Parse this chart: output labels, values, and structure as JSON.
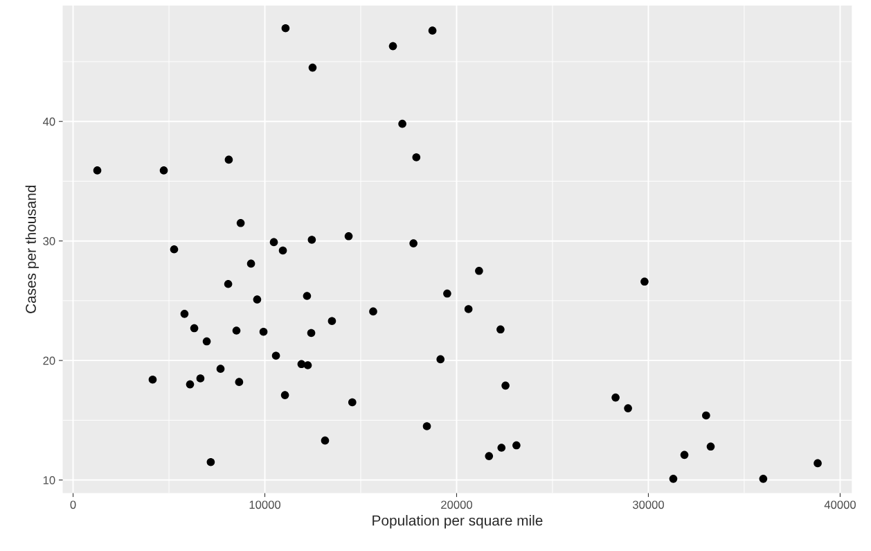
{
  "chart_data": {
    "type": "scatter",
    "xlabel": "Population per square mile",
    "ylabel": "Cases per thousand",
    "x": [
      1264,
      4150,
      4730,
      5270,
      5810,
      6100,
      6320,
      6640,
      6970,
      7180,
      7690,
      8120,
      8090,
      8520,
      8660,
      8740,
      9280,
      9600,
      9930,
      10470,
      10580,
      10940,
      11050,
      11080,
      11910,
      12240,
      12200,
      12420,
      12450,
      12490,
      13140,
      13500,
      14370,
      14560,
      15650,
      16680,
      17170,
      17750,
      17900,
      18450,
      18740,
      19160,
      19510,
      20620,
      21170,
      21690,
      22290,
      22340,
      22550,
      23120,
      28290,
      28940,
      29800,
      31300,
      31880,
      33010,
      33250,
      35990,
      38830
    ],
    "values": [
      35.9,
      18.4,
      35.9,
      29.3,
      23.9,
      18.0,
      22.7,
      18.5,
      21.6,
      11.5,
      19.3,
      36.8,
      26.4,
      22.5,
      18.2,
      31.5,
      28.1,
      25.1,
      22.4,
      29.9,
      20.4,
      29.2,
      17.1,
      47.8,
      19.7,
      19.6,
      25.4,
      22.3,
      30.1,
      44.5,
      13.3,
      23.3,
      30.4,
      16.5,
      24.1,
      46.3,
      39.8,
      29.8,
      37.0,
      14.5,
      47.6,
      20.1,
      25.6,
      24.3,
      27.5,
      12.0,
      22.6,
      12.7,
      17.9,
      12.9,
      16.9,
      16.0,
      26.6,
      10.1,
      12.1,
      15.4,
      12.8,
      10.1,
      11.4
    ],
    "color": "#000000",
    "marker": "circle",
    "xlim": [
      -540,
      40610
    ],
    "ylim": [
      8.9,
      49.7
    ],
    "xticks": [
      0,
      10000,
      20000,
      30000,
      40000
    ],
    "yticks": [
      10,
      20,
      30,
      40
    ],
    "grid": true
  }
}
